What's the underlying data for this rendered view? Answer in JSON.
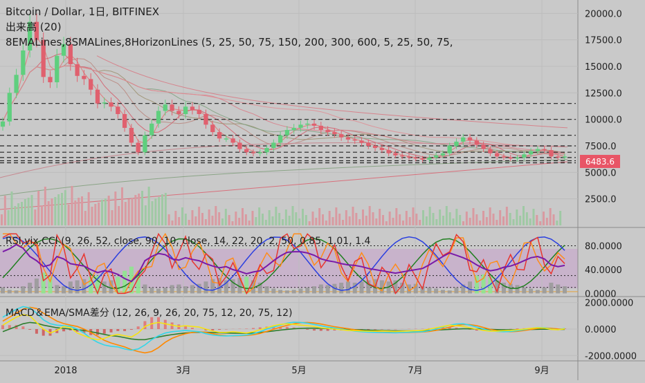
{
  "colors": {
    "background": "#c9c9c9",
    "up_candle": "#5fcf7e",
    "down_candle": "#e0606e",
    "last_price_tag": "#e85566",
    "hline": "#222222",
    "rsi": "#7a1aa8",
    "cci_red": "#e8352f",
    "cci_orange": "#ff8c1a",
    "blue_osc": "#2a3fe0",
    "green_osc": "#1f7f1f",
    "vix_bars": "#9a9a9a",
    "vix_highlight": "#8ee68e",
    "macd_yellow": "#f5e313",
    "macd_cyan": "#33d6e8",
    "macd_orange": "#ff8800",
    "macd_green": "#2d7d2d"
  },
  "chart_data": [
    {
      "type": "candlestick",
      "title": "Bitcoin / Dollar, 1日, BITFINEX",
      "indicator_labels": [
        "出来高 (20)",
        "8EMALines,8SMALines,8HorizonLines (5, 25, 50, 75, 150, 200, 300, 600, 5, 25, 50, 75,"
      ],
      "y_ticks": [
        "20000.0",
        "17500.0",
        "15000.0",
        "12500.0",
        "10000.0",
        "7500.0",
        "5000.0",
        "2500.0"
      ],
      "ylim": [
        0,
        21000
      ],
      "last_price": "6483.6",
      "horizontal_lines": [
        11500,
        10000,
        8500,
        7500,
        6900,
        6400,
        6100,
        5900
      ],
      "close": [
        9800,
        12500,
        14200,
        16500,
        19200,
        17500,
        14000,
        13500,
        16000,
        17100,
        15200,
        14100,
        13800,
        12800,
        11500,
        11600,
        11200,
        10500,
        9200,
        7800,
        6900,
        8500,
        9600,
        10800,
        11400,
        10800,
        10500,
        11200,
        10900,
        10500,
        9500,
        8800,
        8200,
        8200,
        7800,
        7200,
        6900,
        6800,
        6900,
        7300,
        7800,
        8500,
        9000,
        9200,
        9500,
        9600,
        9400,
        9000,
        8800,
        8600,
        8300,
        8100,
        8000,
        7800,
        7500,
        7300,
        7100,
        6800,
        6600,
        6500,
        6400,
        6300,
        6200,
        6400,
        6600,
        6800,
        7500,
        7900,
        8300,
        8000,
        7600,
        7200,
        6800,
        6500,
        6400,
        6300,
        6400,
        6700,
        7000,
        7200,
        7100,
        6500,
        6400,
        6500
      ]
    },
    {
      "type": "line",
      "title": "RSI,vix,CCI (9, 26, 52, close, 90, 10, close, 14, 22, 20, 2, 50, 0.85, 1.01, 1.4",
      "y_ticks": [
        "80.0000",
        "40.0000",
        "0.0000"
      ],
      "ylim": [
        -3,
        105
      ],
      "rsi": [
        70,
        75,
        82,
        76,
        62,
        55,
        45,
        48,
        62,
        58,
        50,
        48,
        46,
        40,
        35,
        38,
        36,
        32,
        25,
        20,
        33,
        55,
        62,
        67,
        65,
        58,
        56,
        60,
        57,
        55,
        50,
        46,
        43,
        45,
        40,
        37,
        33,
        36,
        38,
        46,
        55,
        63,
        69,
        70,
        70,
        68,
        64,
        58,
        55,
        53,
        50,
        48,
        47,
        45,
        42,
        40,
        38,
        36,
        34,
        36,
        38,
        40,
        42,
        48,
        55,
        62,
        68,
        64,
        60,
        55,
        48,
        42,
        38,
        40,
        44,
        46,
        50,
        55,
        60,
        62,
        58,
        48,
        45,
        47
      ],
      "vix": [
        10,
        6,
        5,
        12,
        18,
        25,
        35,
        28,
        14,
        12,
        20,
        22,
        24,
        28,
        30,
        20,
        22,
        28,
        38,
        45,
        30,
        15,
        10,
        8,
        10,
        14,
        15,
        12,
        14,
        16,
        20,
        24,
        26,
        22,
        24,
        26,
        28,
        22,
        18,
        12,
        8,
        6,
        5,
        6,
        8,
        10,
        12,
        15,
        14,
        16,
        18,
        20,
        18,
        20,
        22,
        24,
        22,
        20,
        22,
        18,
        15,
        16,
        12,
        10,
        8,
        6,
        5,
        10,
        15,
        20,
        30,
        32,
        28,
        22,
        18,
        16,
        14,
        10,
        8,
        6,
        10,
        18,
        15,
        12
      ],
      "horizontal_levels": [
        80,
        30,
        10
      ]
    },
    {
      "type": "line",
      "title": "MACD＆EMA/SMA差分 (12, 26, 9, 26, 20, 75, 12, 20, 75, 12)",
      "y_ticks": [
        "2000.0000",
        "0.0000",
        "-2000.0000"
      ],
      "ylim": [
        -2300,
        2300
      ],
      "macd": [
        900,
        1200,
        1500,
        1700,
        1600,
        1200,
        700,
        400,
        300,
        250,
        200,
        0,
        -300,
        -700,
        -1000,
        -1200,
        -1300,
        -1350,
        -1500,
        -1600,
        -1500,
        -1200,
        -800,
        -500,
        -300,
        -200,
        -150,
        -100,
        -150,
        -200,
        -350,
        -450,
        -500,
        -520,
        -500,
        -480,
        -450,
        -350,
        -200,
        0,
        150,
        300,
        450,
        520,
        500,
        450,
        350,
        250,
        150,
        80,
        0,
        -80,
        -150,
        -200,
        -230,
        -250,
        -260,
        -270,
        -280,
        -260,
        -240,
        -220,
        -200,
        -120,
        0,
        150,
        300,
        380,
        400,
        300,
        150,
        0,
        -120,
        -180,
        -200,
        -180,
        -120,
        -50,
        50,
        120,
        100,
        0,
        -50,
        50
      ],
      "signal": [
        600,
        900,
        1200,
        1500,
        1650,
        1550,
        1200,
        900,
        600,
        420,
        300,
        200,
        0,
        -250,
        -550,
        -850,
        -1050,
        -1200,
        -1350,
        -1550,
        -1700,
        -1800,
        -1700,
        -1400,
        -1000,
        -700,
        -500,
        -350,
        -250,
        -200,
        -250,
        -350,
        -450,
        -500,
        -510,
        -500,
        -480,
        -430,
        -330,
        -180,
        -20,
        150,
        280,
        400,
        480,
        500,
        460,
        380,
        280,
        180,
        100,
        30,
        -50,
        -120,
        -180,
        -220,
        -240,
        -250,
        -260,
        -265,
        -255,
        -240,
        -220,
        -180,
        -100,
        20,
        150,
        270,
        350,
        340,
        260,
        120,
        -20,
        -120,
        -180,
        -200,
        -170,
        -110,
        -30,
        50,
        90,
        60,
        10,
        0
      ],
      "diff_short": [
        300,
        600,
        900,
        1100,
        1000,
        500,
        0,
        -300,
        -100,
        200,
        100,
        -300,
        -500,
        -700,
        -800,
        -700,
        -500,
        -400,
        -500,
        -600,
        -300,
        200,
        400,
        500,
        400,
        300,
        200,
        250,
        200,
        150,
        0,
        -150,
        -250,
        -250,
        -200,
        -250,
        -300,
        -200,
        -50,
        100,
        250,
        350,
        400,
        350,
        300,
        250,
        200,
        100,
        50,
        0,
        -50,
        -100,
        -120,
        -140,
        -160,
        -150,
        -140,
        -160,
        -180,
        -160,
        -140,
        -120,
        -100,
        0,
        100,
        200,
        300,
        250,
        200,
        100,
        0,
        -100,
        -150,
        -150,
        -120,
        -100,
        -60,
        0,
        60,
        100,
        80,
        -20,
        -60,
        20
      ],
      "diff_long": [
        -200,
        0,
        200,
        400,
        500,
        450,
        300,
        200,
        100,
        50,
        0,
        -50,
        -100,
        -200,
        -300,
        -400,
        -500,
        -550,
        -650,
        -750,
        -800,
        -800,
        -700,
        -600,
        -500,
        -420,
        -350,
        -300,
        -260,
        -240,
        -240,
        -260,
        -280,
        -300,
        -310,
        -320,
        -320,
        -300,
        -260,
        -200,
        -140,
        -80,
        -20,
        20,
        50,
        70,
        70,
        60,
        40,
        20,
        0,
        -20,
        -40,
        -60,
        -80,
        -95,
        -110,
        -120,
        -130,
        -135,
        -135,
        -130,
        -120,
        -100,
        -80,
        -50,
        -20,
        0,
        20,
        20,
        10,
        0,
        -20,
        -40,
        -55,
        -60,
        -55,
        -45,
        -30,
        -15,
        -5,
        -10,
        -20,
        -20
      ]
    }
  ],
  "x_ticks": [
    "2018",
    "3月",
    "5月",
    "7月",
    "9月"
  ]
}
